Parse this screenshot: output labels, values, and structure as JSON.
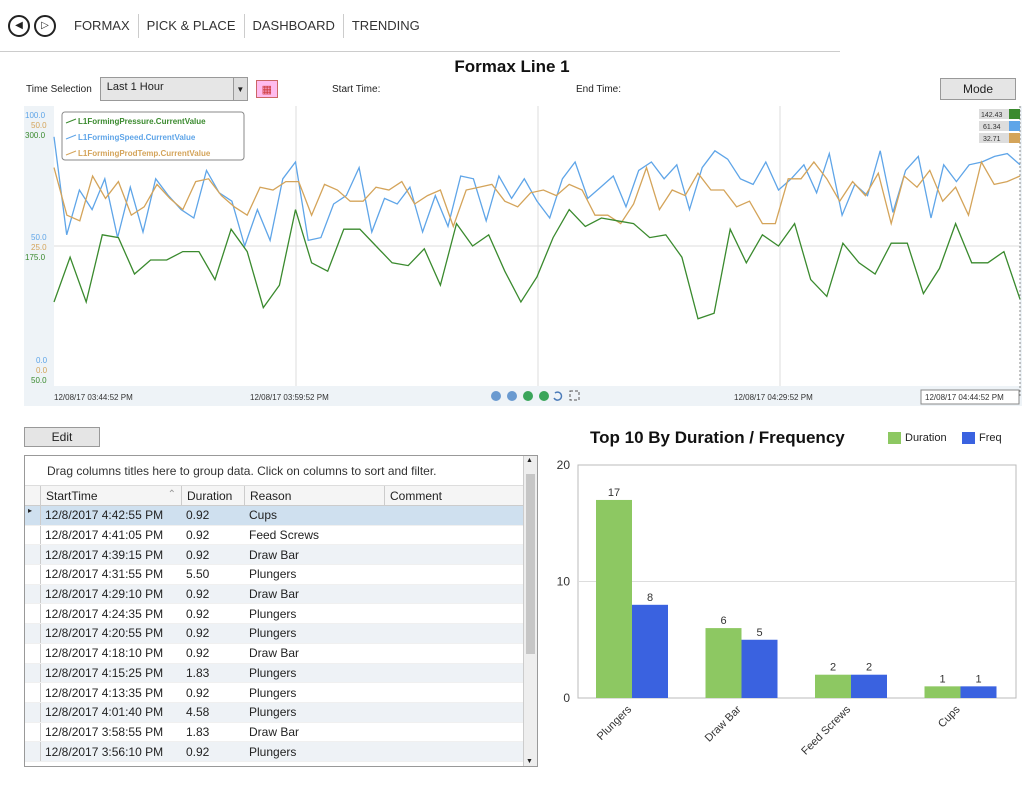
{
  "nav": {
    "tabs": [
      "FORMAX",
      "PICK & PLACE",
      "DASHBOARD",
      "TRENDING"
    ]
  },
  "page_title": "Formax Line 1",
  "time_selection": {
    "label": "Time Selection",
    "value": "Last 1 Hour",
    "start_label": "Start Time:",
    "end_label": "End Time:",
    "mode_label": "Mode"
  },
  "trend": {
    "legend": [
      {
        "name": "L1FormingPressure.CurrentValue",
        "color": "#3a8a2e"
      },
      {
        "name": "L1FormingSpeed.CurrentValue",
        "color": "#5fa5e8"
      },
      {
        "name": "L1FormingProdTemp.CurrentValue",
        "color": "#d4a45a"
      }
    ],
    "current_values": [
      "142.43",
      "61.34",
      "32.71"
    ],
    "axis_top": [
      "100.0",
      "50.0",
      "300.0"
    ],
    "axis_mid": [
      "50.0",
      "25.0",
      "175.0"
    ],
    "axis_bottom": [
      "0.0",
      "0.0",
      "50.0"
    ],
    "time_labels": [
      "12/08/17 03:44:52 PM",
      "12/08/17 03:59:52 PM",
      "12/08/17 04:29:52 PM",
      "12/08/17 04:44:52 PM"
    ],
    "series_speed": [
      89,
      54,
      70,
      63,
      74,
      53,
      71,
      55,
      74,
      68,
      63,
      60,
      77,
      69,
      66,
      50,
      63,
      52,
      74,
      80,
      52,
      53,
      65,
      68,
      78,
      55,
      67,
      65,
      71,
      55,
      68,
      57,
      75,
      74,
      59,
      75,
      67,
      74,
      66,
      60,
      74,
      80,
      67,
      71,
      75,
      64,
      77,
      80,
      74,
      79,
      63,
      78,
      84,
      81,
      74,
      72,
      80,
      70,
      74,
      79,
      69,
      83,
      61,
      72,
      68,
      84,
      62,
      77,
      82,
      60,
      79,
      73,
      79,
      80,
      82,
      83,
      79
    ],
    "series_temp": [
      78,
      61,
      59,
      75,
      67,
      73,
      61,
      64,
      72,
      67,
      63,
      73,
      74,
      68,
      64,
      61,
      71,
      70,
      73,
      73,
      61,
      72,
      70,
      66,
      66,
      71,
      70,
      73,
      65,
      68,
      70,
      57,
      70,
      71,
      72,
      66,
      64,
      69,
      70,
      68,
      72,
      70,
      61,
      61,
      58,
      65,
      78,
      63,
      70,
      68,
      76,
      70,
      70,
      64,
      66,
      58,
      58,
      74,
      74,
      80,
      74,
      66,
      73,
      68,
      76,
      58,
      75,
      71,
      77,
      66,
      71,
      61,
      80,
      72,
      73,
      75
    ],
    "series_pressure": [
      30,
      46,
      30,
      54,
      53,
      40,
      45,
      45,
      48,
      48,
      38,
      56,
      48,
      28,
      36,
      63,
      44,
      41,
      56,
      56,
      50,
      44,
      43,
      49,
      36,
      58,
      50,
      54,
      41,
      30,
      39,
      53,
      63,
      57,
      60,
      59,
      58,
      53,
      54,
      46,
      24,
      26,
      56,
      44,
      54,
      50,
      58,
      38,
      32,
      51,
      44,
      40,
      51,
      51,
      33,
      42,
      58,
      44,
      44,
      48,
      31
    ],
    "nav_icons": [
      "zoom-out-icon",
      "zoom-in-icon",
      "play-icon",
      "next-icon",
      "refresh-icon",
      "fullscreen-icon"
    ]
  },
  "edit_label": "Edit",
  "grid": {
    "hint": "Drag columns titles here to group data.  Click on columns to sort and filter.",
    "columns": [
      "StartTime",
      "Duration",
      "Reason",
      "Comment"
    ],
    "rows": [
      [
        "12/8/2017 4:42:55 PM",
        "0.92",
        "Cups",
        ""
      ],
      [
        "12/8/2017 4:41:05 PM",
        "0.92",
        "Feed Screws",
        ""
      ],
      [
        "12/8/2017 4:39:15 PM",
        "0.92",
        "Draw Bar",
        ""
      ],
      [
        "12/8/2017 4:31:55 PM",
        "5.50",
        "Plungers",
        ""
      ],
      [
        "12/8/2017 4:29:10 PM",
        "0.92",
        "Draw Bar",
        ""
      ],
      [
        "12/8/2017 4:24:35 PM",
        "0.92",
        "Plungers",
        ""
      ],
      [
        "12/8/2017 4:20:55 PM",
        "0.92",
        "Plungers",
        ""
      ],
      [
        "12/8/2017 4:18:10 PM",
        "0.92",
        "Draw Bar",
        ""
      ],
      [
        "12/8/2017 4:15:25 PM",
        "1.83",
        "Plungers",
        ""
      ],
      [
        "12/8/2017 4:13:35 PM",
        "0.92",
        "Plungers",
        ""
      ],
      [
        "12/8/2017 4:01:40 PM",
        "4.58",
        "Plungers",
        ""
      ],
      [
        "12/8/2017 3:58:55 PM",
        "1.83",
        "Draw Bar",
        ""
      ],
      [
        "12/8/2017 3:56:10 PM",
        "0.92",
        "Plungers",
        ""
      ]
    ]
  },
  "chart_data": {
    "type": "bar",
    "title": "Top 10 By Duration / Frequency",
    "categories": [
      "Plungers",
      "Draw Bar",
      "Feed Screws",
      "Cups"
    ],
    "series": [
      {
        "name": "Duration",
        "values": [
          17,
          6,
          2,
          1
        ],
        "color": "#8dc862"
      },
      {
        "name": "Freq",
        "values": [
          8,
          5,
          2,
          1
        ],
        "color": "#3a62e0"
      }
    ],
    "ylim": [
      0,
      20
    ],
    "yticks": [
      0,
      10,
      20
    ],
    "legend_position": "top-right",
    "grid": true
  }
}
